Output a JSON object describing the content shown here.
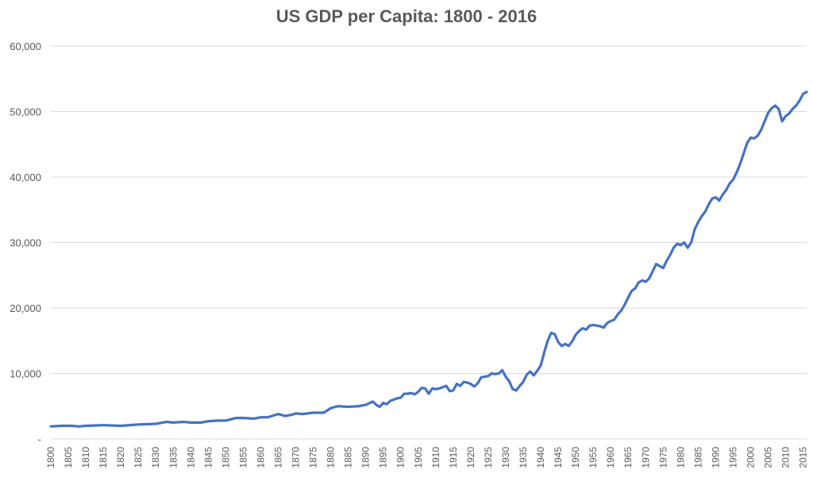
{
  "chart_data": {
    "type": "line",
    "title": "US GDP per Capita: 1800 - 2016",
    "xlabel": "",
    "ylabel": "",
    "xlim": [
      1800,
      2016
    ],
    "ylim": [
      0,
      60000
    ],
    "y_ticks": [
      {
        "value": 0,
        "label": "-"
      },
      {
        "value": 10000,
        "label": "10,000"
      },
      {
        "value": 20000,
        "label": "20,000"
      },
      {
        "value": 30000,
        "label": "30,000"
      },
      {
        "value": 40000,
        "label": "40,000"
      },
      {
        "value": 50000,
        "label": "50,000"
      },
      {
        "value": 60000,
        "label": "60,000"
      }
    ],
    "x_ticks": [
      "1800",
      "1805",
      "1810",
      "1815",
      "1820",
      "1825",
      "1830",
      "1835",
      "1840",
      "1845",
      "1850",
      "1855",
      "1860",
      "1865",
      "1870",
      "1875",
      "1880",
      "1885",
      "1890",
      "1895",
      "1900",
      "1905",
      "1910",
      "1915",
      "1920",
      "1925",
      "1930",
      "1935",
      "1940",
      "1945",
      "1950",
      "1955",
      "1960",
      "1965",
      "1970",
      "1975",
      "1980",
      "1985",
      "1990",
      "1995",
      "2000",
      "2005",
      "2010",
      "2015"
    ],
    "grid": true,
    "legend": "none",
    "colors": {
      "line": "#4472C4",
      "grid": "#d9d9d9",
      "text": "#595959"
    },
    "series": [
      {
        "points": [
          [
            1800,
            1900
          ],
          [
            1803,
            2000
          ],
          [
            1806,
            2000
          ],
          [
            1808,
            1900
          ],
          [
            1810,
            2000
          ],
          [
            1815,
            2100
          ],
          [
            1820,
            2000
          ],
          [
            1825,
            2200
          ],
          [
            1830,
            2300
          ],
          [
            1833,
            2600
          ],
          [
            1835,
            2500
          ],
          [
            1838,
            2600
          ],
          [
            1840,
            2500
          ],
          [
            1843,
            2500
          ],
          [
            1845,
            2700
          ],
          [
            1848,
            2800
          ],
          [
            1850,
            2800
          ],
          [
            1853,
            3200
          ],
          [
            1855,
            3200
          ],
          [
            1858,
            3100
          ],
          [
            1860,
            3300
          ],
          [
            1862,
            3300
          ],
          [
            1865,
            3800
          ],
          [
            1867,
            3500
          ],
          [
            1869,
            3700
          ],
          [
            1870,
            3900
          ],
          [
            1872,
            3800
          ],
          [
            1875,
            4000
          ],
          [
            1878,
            4000
          ],
          [
            1880,
            4700
          ],
          [
            1882,
            5000
          ],
          [
            1885,
            4900
          ],
          [
            1888,
            5000
          ],
          [
            1890,
            5200
          ],
          [
            1892,
            5700
          ],
          [
            1893,
            5200
          ],
          [
            1894,
            4900
          ],
          [
            1895,
            5500
          ],
          [
            1896,
            5300
          ],
          [
            1897,
            5800
          ],
          [
            1899,
            6200
          ],
          [
            1900,
            6300
          ],
          [
            1901,
            6900
          ],
          [
            1902,
            6900
          ],
          [
            1903,
            7000
          ],
          [
            1904,
            6800
          ],
          [
            1905,
            7200
          ],
          [
            1906,
            7800
          ],
          [
            1907,
            7700
          ],
          [
            1908,
            6900
          ],
          [
            1909,
            7700
          ],
          [
            1910,
            7600
          ],
          [
            1911,
            7700
          ],
          [
            1912,
            7900
          ],
          [
            1913,
            8100
          ],
          [
            1914,
            7300
          ],
          [
            1915,
            7400
          ],
          [
            1916,
            8400
          ],
          [
            1917,
            8100
          ],
          [
            1918,
            8700
          ],
          [
            1919,
            8600
          ],
          [
            1920,
            8400
          ],
          [
            1921,
            8000
          ],
          [
            1922,
            8500
          ],
          [
            1923,
            9400
          ],
          [
            1924,
            9500
          ],
          [
            1925,
            9600
          ],
          [
            1926,
            10000
          ],
          [
            1927,
            9900
          ],
          [
            1928,
            10000
          ],
          [
            1929,
            10500
          ],
          [
            1930,
            9500
          ],
          [
            1931,
            8800
          ],
          [
            1932,
            7600
          ],
          [
            1933,
            7400
          ],
          [
            1934,
            8100
          ],
          [
            1935,
            8700
          ],
          [
            1936,
            9800
          ],
          [
            1937,
            10300
          ],
          [
            1938,
            9700
          ],
          [
            1939,
            10400
          ],
          [
            1940,
            11200
          ],
          [
            1941,
            13200
          ],
          [
            1942,
            15000
          ],
          [
            1943,
            16200
          ],
          [
            1944,
            16000
          ],
          [
            1945,
            14800
          ],
          [
            1946,
            14200
          ],
          [
            1947,
            14500
          ],
          [
            1948,
            14200
          ],
          [
            1949,
            14900
          ],
          [
            1950,
            15900
          ],
          [
            1951,
            16500
          ],
          [
            1952,
            16900
          ],
          [
            1953,
            16700
          ],
          [
            1954,
            17300
          ],
          [
            1955,
            17400
          ],
          [
            1956,
            17300
          ],
          [
            1957,
            17200
          ],
          [
            1958,
            17000
          ],
          [
            1959,
            17700
          ],
          [
            1960,
            18000
          ],
          [
            1961,
            18200
          ],
          [
            1962,
            19000
          ],
          [
            1963,
            19600
          ],
          [
            1964,
            20500
          ],
          [
            1965,
            21600
          ],
          [
            1966,
            22600
          ],
          [
            1967,
            23000
          ],
          [
            1968,
            23900
          ],
          [
            1969,
            24200
          ],
          [
            1970,
            24000
          ],
          [
            1971,
            24500
          ],
          [
            1972,
            25600
          ],
          [
            1973,
            26700
          ],
          [
            1974,
            26400
          ],
          [
            1975,
            26100
          ],
          [
            1976,
            27200
          ],
          [
            1977,
            28100
          ],
          [
            1978,
            29200
          ],
          [
            1979,
            29800
          ],
          [
            1980,
            29600
          ],
          [
            1981,
            30000
          ],
          [
            1982,
            29200
          ],
          [
            1983,
            30000
          ],
          [
            1984,
            32000
          ],
          [
            1985,
            33100
          ],
          [
            1986,
            34000
          ],
          [
            1987,
            34700
          ],
          [
            1988,
            35800
          ],
          [
            1989,
            36700
          ],
          [
            1990,
            36900
          ],
          [
            1991,
            36400
          ],
          [
            1992,
            37300
          ],
          [
            1993,
            38000
          ],
          [
            1994,
            39000
          ],
          [
            1995,
            39600
          ],
          [
            1996,
            40700
          ],
          [
            1997,
            42000
          ],
          [
            1998,
            43600
          ],
          [
            1999,
            45200
          ],
          [
            2000,
            46000
          ],
          [
            2001,
            45900
          ],
          [
            2002,
            46300
          ],
          [
            2003,
            47200
          ],
          [
            2004,
            48500
          ],
          [
            2005,
            49800
          ],
          [
            2006,
            50500
          ],
          [
            2007,
            50900
          ],
          [
            2008,
            50400
          ],
          [
            2009,
            48500
          ],
          [
            2010,
            49300
          ],
          [
            2011,
            49700
          ],
          [
            2012,
            50400
          ],
          [
            2013,
            50900
          ],
          [
            2014,
            51700
          ],
          [
            2015,
            52700
          ],
          [
            2016,
            53000
          ]
        ]
      }
    ]
  }
}
